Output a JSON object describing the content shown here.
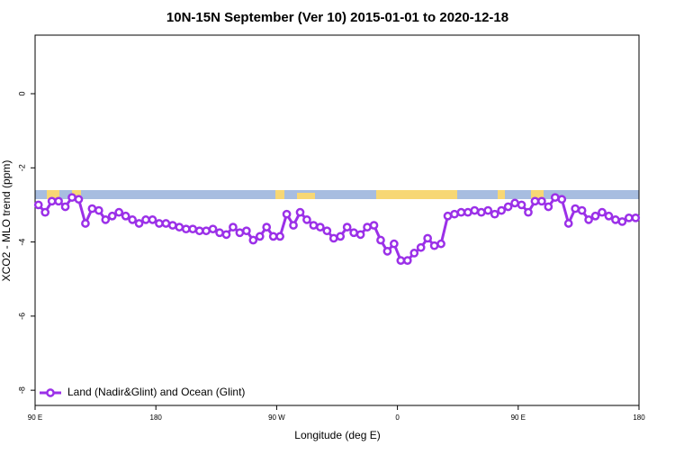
{
  "chart_data": {
    "type": "line",
    "title": "10N-15N September (Ver 10)   2015-01-01 to 2020-12-18",
    "x_label": "Longitude (deg E)",
    "y_label": "XCO2 - MLO trend (ppm)",
    "xlim": [
      90,
      540
    ],
    "xticks": [
      {
        "value": 90,
        "label": "90 E"
      },
      {
        "value": 180,
        "label": "180"
      },
      {
        "value": 270,
        "label": "90 W"
      },
      {
        "value": 360,
        "label": "0"
      },
      {
        "value": 450,
        "label": "90 E"
      },
      {
        "value": 540,
        "label": "180"
      }
    ],
    "ylim": [
      -8.41,
      1.58
    ],
    "yticks": [
      0,
      -2,
      -4,
      -6,
      -8
    ],
    "legend": "bottom-left",
    "x": [
      92.5,
      97.5,
      102.5,
      107.5,
      112.5,
      117.5,
      122.5,
      127.5,
      132.5,
      137.5,
      142.5,
      147.5,
      152.5,
      157.5,
      162.5,
      167.5,
      172.5,
      177.5,
      182.5,
      187.5,
      192.5,
      197.5,
      202.5,
      207.5,
      212.5,
      217.5,
      222.5,
      227.5,
      232.5,
      237.5,
      242.5,
      247.5,
      252.5,
      257.5,
      262.5,
      267.5,
      272.5,
      277.5,
      282.5,
      287.5,
      292.5,
      297.5,
      302.5,
      307.5,
      312.5,
      317.5,
      322.5,
      327.5,
      332.5,
      337.5,
      342.5,
      347.5,
      352.5,
      357.5,
      362.5,
      367.5,
      372.5,
      377.5,
      382.5,
      387.5,
      392.5,
      397.5,
      402.5,
      407.5,
      412.5,
      417.5,
      422.5,
      427.5,
      432.5,
      437.5,
      442.5,
      447.5,
      452.5,
      457.5,
      462.5,
      467.5,
      472.5,
      477.5,
      482.5,
      487.5,
      492.5,
      497.5,
      502.5,
      507.5,
      512.5,
      517.5,
      522.5,
      527.5,
      532.5,
      537.5
    ],
    "series": [
      {
        "name": "Land (Nadir&Glint) and Ocean (Glint)",
        "color": "#9b30e8",
        "values": [
          -3.0,
          -3.2,
          -2.9,
          -2.9,
          -3.05,
          -2.8,
          -2.85,
          -3.5,
          -3.1,
          -3.15,
          -3.4,
          -3.3,
          -3.2,
          -3.3,
          -3.4,
          -3.5,
          -3.4,
          -3.4,
          -3.5,
          -3.5,
          -3.55,
          -3.6,
          -3.65,
          -3.65,
          -3.7,
          -3.7,
          -3.65,
          -3.75,
          -3.8,
          -3.6,
          -3.75,
          -3.7,
          -3.95,
          -3.85,
          -3.6,
          -3.85,
          -3.85,
          -3.25,
          -3.55,
          -3.2,
          -3.4,
          -3.55,
          -3.6,
          -3.7,
          -3.9,
          -3.85,
          -3.6,
          -3.75,
          -3.8,
          -3.6,
          -3.55,
          -3.95,
          -4.25,
          -4.05,
          -4.5,
          -4.5,
          -4.3,
          -4.15,
          -3.9,
          -4.1,
          -4.05,
          -3.3,
          -3.25,
          -3.2,
          -3.2,
          -3.15,
          -3.2,
          -3.15,
          -3.25,
          -3.15,
          -3.05,
          -2.95,
          -3.0,
          -3.2,
          -2.9,
          -2.9,
          -3.05,
          -2.8,
          -2.85,
          -3.5,
          -3.1,
          -3.15,
          -3.4,
          -3.3,
          -3.2,
          -3.3,
          -3.4,
          -3.45,
          -3.35,
          -3.35
        ]
      }
    ]
  }
}
